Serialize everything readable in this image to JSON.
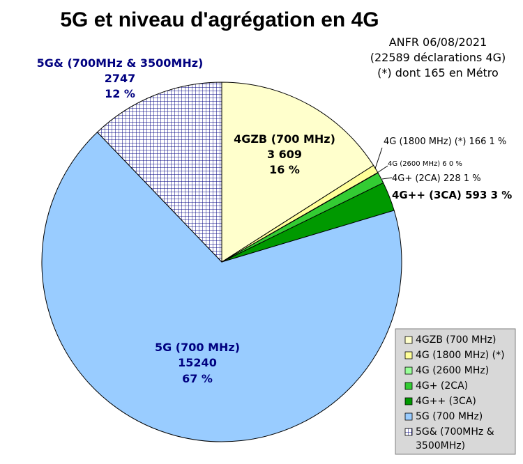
{
  "chart_data": {
    "type": "pie",
    "title": "5G et niveau d'agrégation en 4G",
    "notes": [
      "ANFR 06/08/2021",
      "(22589 déclarations 4G)",
      "(*) dont 165 en Métro"
    ],
    "slices": [
      {
        "name": "4GZB (700 MHz)",
        "value": 3609,
        "value_text": "3 609",
        "percent_text": "16 %",
        "color": "#ffffcc"
      },
      {
        "name": "4G (1800 MHz) (*)",
        "value": 166,
        "value_text": "166",
        "percent_text": "1 %",
        "color": "#ffff99"
      },
      {
        "name": "4G (2600 MHz)",
        "value": 6,
        "value_text": "6",
        "percent_text": "0 %",
        "color": "#99ff99"
      },
      {
        "name": "4G+ (2CA)",
        "value": 228,
        "value_text": "228",
        "percent_text": "1 %",
        "color": "#33cc33"
      },
      {
        "name": "4G++ (3CA)",
        "value": 593,
        "value_text": "593",
        "percent_text": "3 %",
        "color": "#009900"
      },
      {
        "name": "5G (700 MHz)",
        "value": 15240,
        "value_text": "15240",
        "percent_text": "67 %",
        "color": "#99ccff"
      },
      {
        "name": "5G& (700MHz & 3500MHz)",
        "value": 2747,
        "value_text": "2747",
        "percent_text": "12 %",
        "color": "#000080",
        "pattern": "grid"
      }
    ],
    "callouts": {
      "s1": "4G (1800 MHz) (*) 166 1 %",
      "s2": "4G (2600 MHz) 6 0 %",
      "s3": "4G+ (2CA) 228 1 %",
      "s4": "4G++ (3CA) 593 3 %"
    },
    "legend": {
      "position": "bottom-right",
      "entries": [
        "4GZB (700 MHz)",
        "4G (1800 MHz) (*)",
        "4G (2600 MHz)",
        "4G+ (2CA)",
        "4G++ (3CA)",
        "5G (700 MHz)",
        "5G& (700MHz &",
        "3500MHz)"
      ]
    }
  }
}
